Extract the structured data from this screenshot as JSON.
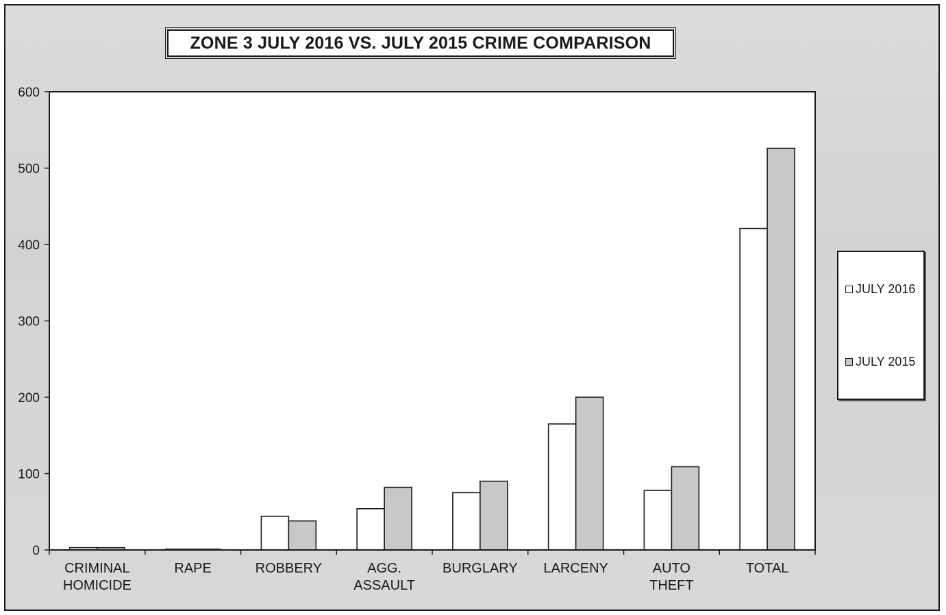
{
  "chart_data": {
    "type": "bar",
    "title": "ZONE 3  JULY 2016 VS. JULY 2015 CRIME COMPARISON",
    "categories": [
      [
        "CRIMINAL",
        "HOMICIDE"
      ],
      [
        "RAPE"
      ],
      [
        "ROBBERY"
      ],
      [
        "AGG.",
        "ASSAULT"
      ],
      [
        "BURGLARY"
      ],
      [
        "LARCENY"
      ],
      [
        "AUTO",
        "THEFT"
      ],
      [
        "TOTAL"
      ]
    ],
    "series": [
      {
        "name": "JULY 2016",
        "color": "#ffffff",
        "values": [
          3,
          1,
          44,
          54,
          75,
          165,
          78,
          421
        ]
      },
      {
        "name": "JULY 2015",
        "color": "#c8c8c8",
        "values": [
          3,
          1,
          38,
          82,
          90,
          200,
          109,
          526
        ]
      }
    ],
    "ylim": [
      0,
      600
    ],
    "yticks": [
      0,
      100,
      200,
      300,
      400,
      500,
      600
    ],
    "legend_position": "right",
    "grid": false
  }
}
